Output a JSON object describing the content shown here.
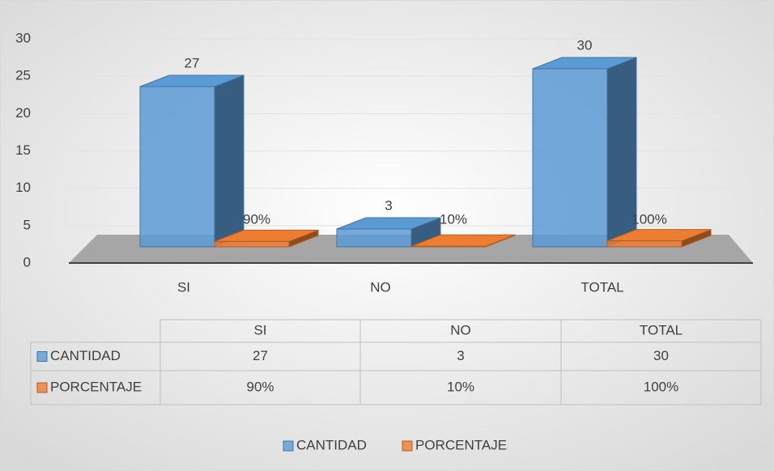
{
  "chart_data": {
    "type": "bar3d",
    "categories": [
      "SI",
      "NO",
      "TOTAL"
    ],
    "series": [
      {
        "name": "CANTIDAD",
        "color": "#5b9bd5",
        "values": [
          27,
          3,
          30
        ]
      },
      {
        "name": "PORCENTAJE",
        "color": "#ed7d31",
        "values": [
          0.9,
          0.1,
          1
        ],
        "value_labels": [
          "90%",
          "10%",
          "100%"
        ]
      }
    ],
    "ylim": [
      0,
      30
    ],
    "yticks": [
      0,
      5,
      10,
      15,
      20,
      25,
      30
    ],
    "grid": true,
    "legend": "bottom",
    "data_table": true
  }
}
